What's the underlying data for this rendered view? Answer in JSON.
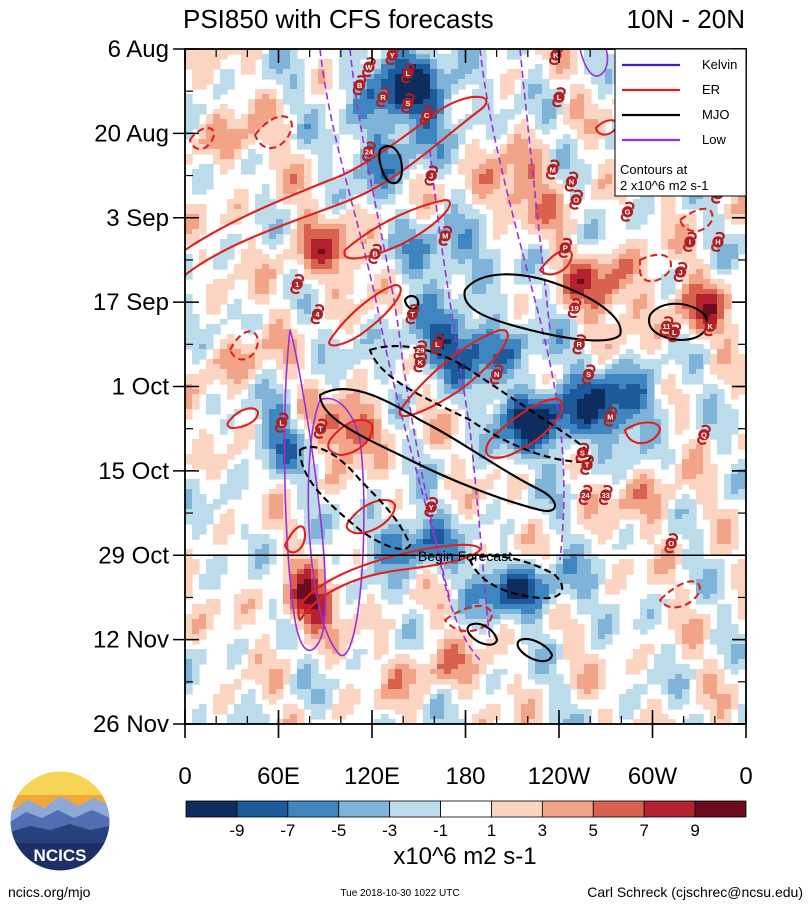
{
  "chart_data": {
    "type": "heatmap",
    "title": "PSI850 with CFS forecasts",
    "title_right": "10N - 20N",
    "xlabel": "",
    "ylabel": "",
    "x_tick_labels": [
      "0",
      "60E",
      "120E",
      "180",
      "120W",
      "60W",
      "0"
    ],
    "x_tick_values_deg_east": [
      0,
      60,
      120,
      180,
      240,
      300,
      360
    ],
    "xlim_deg_east": [
      0,
      360
    ],
    "y_tick_labels": [
      "6 Aug",
      "20 Aug",
      "3 Sep",
      "17 Sep",
      "1 Oct",
      "15 Oct",
      "29 Oct",
      "12 Nov",
      "26 Nov"
    ],
    "y_tick_dates": [
      "2018-08-06",
      "2018-08-20",
      "2018-09-03",
      "2018-09-17",
      "2018-10-01",
      "2018-10-15",
      "2018-10-29",
      "2018-11-12",
      "2018-11-26"
    ],
    "ylim_dates": [
      "2018-08-06",
      "2018-11-26"
    ],
    "y_direction": "time increases downward",
    "forecast_start": {
      "date": "2018-10-29",
      "label": "Begin Forecast"
    },
    "colorbar": {
      "units": "x10^6 m2 s-1",
      "bounds": [
        -11,
        -9,
        -7,
        -5,
        -3,
        -1,
        1,
        3,
        5,
        7,
        9,
        11
      ],
      "tick_labels": [
        "-9",
        "-7",
        "-5",
        "-3",
        "-1",
        "1",
        "3",
        "5",
        "7",
        "9"
      ],
      "colors": [
        "#0d2d5e",
        "#1c5a9c",
        "#3f86c0",
        "#7fb4d8",
        "#bcdcec",
        "#ffffff",
        "#fbd5c2",
        "#f2a488",
        "#d9624e",
        "#b3222e",
        "#6b0d1d"
      ]
    },
    "legend": {
      "placement": "top-right",
      "entries": [
        {
          "name": "Kelvin",
          "color": "#3a1fd0"
        },
        {
          "name": "ER",
          "color": "#e0201e"
        },
        {
          "name": "MJO",
          "color": "#000000"
        },
        {
          "name": "Low",
          "color": "#9b30d8"
        }
      ],
      "note_line1": "Contours at",
      "note_line2": "2 x10^6 m2 s-1"
    },
    "storm_markers": [
      {
        "label": "Y",
        "lon": 133,
        "date": "2018-08-07"
      },
      {
        "label": "K",
        "lon": 238,
        "date": "2018-08-07"
      },
      {
        "label": "W",
        "lon": 118,
        "date": "2018-08-09"
      },
      {
        "label": "L",
        "lon": 143,
        "date": "2018-08-10"
      },
      {
        "label": "B",
        "lon": 112,
        "date": "2018-08-12"
      },
      {
        "label": "R",
        "lon": 127,
        "date": "2018-08-14"
      },
      {
        "label": "S",
        "lon": 143,
        "date": "2018-08-15"
      },
      {
        "label": "L",
        "lon": 240,
        "date": "2018-08-14"
      },
      {
        "label": "C",
        "lon": 155,
        "date": "2018-08-17"
      },
      {
        "label": "24",
        "lon": 118,
        "date": "2018-08-23"
      },
      {
        "label": "J",
        "lon": 158,
        "date": "2018-08-27"
      },
      {
        "label": "M",
        "lon": 236,
        "date": "2018-08-26"
      },
      {
        "label": "N",
        "lon": 248,
        "date": "2018-08-28"
      },
      {
        "label": "O",
        "lon": 251,
        "date": "2018-08-31"
      },
      {
        "label": "G",
        "lon": 284,
        "date": "2018-09-02"
      },
      {
        "label": "E",
        "lon": 342,
        "date": "2018-08-30"
      },
      {
        "label": "M",
        "lon": 167,
        "date": "2018-09-06"
      },
      {
        "label": "B",
        "lon": 122,
        "date": "2018-09-09"
      },
      {
        "label": "P",
        "lon": 244,
        "date": "2018-09-08"
      },
      {
        "label": "I",
        "lon": 324,
        "date": "2018-09-07"
      },
      {
        "label": "H",
        "lon": 342,
        "date": "2018-09-07"
      },
      {
        "label": "J",
        "lon": 318,
        "date": "2018-09-12"
      },
      {
        "label": "1",
        "lon": 72,
        "date": "2018-09-14"
      },
      {
        "label": "4",
        "lon": 85,
        "date": "2018-09-19"
      },
      {
        "label": "T",
        "lon": 146,
        "date": "2018-09-19"
      },
      {
        "label": "19",
        "lon": 250,
        "date": "2018-09-18"
      },
      {
        "label": "11",
        "lon": 309,
        "date": "2018-09-21"
      },
      {
        "label": "L",
        "lon": 314,
        "date": "2018-09-22"
      },
      {
        "label": "K",
        "lon": 337,
        "date": "2018-09-21"
      },
      {
        "label": "L",
        "lon": 162,
        "date": "2018-09-24"
      },
      {
        "label": "29",
        "lon": 151,
        "date": "2018-09-25"
      },
      {
        "label": "K",
        "lon": 151,
        "date": "2018-09-27"
      },
      {
        "label": "R",
        "lon": 253,
        "date": "2018-09-24"
      },
      {
        "label": "N",
        "lon": 200,
        "date": "2018-09-29"
      },
      {
        "label": "S",
        "lon": 259,
        "date": "2018-09-29"
      },
      {
        "label": "M",
        "lon": 273,
        "date": "2018-10-06"
      },
      {
        "label": "L",
        "lon": 62,
        "date": "2018-10-07"
      },
      {
        "label": "T",
        "lon": 87,
        "date": "2018-10-08"
      },
      {
        "label": "Q",
        "lon": 333,
        "date": "2018-10-09"
      },
      {
        "label": "S",
        "lon": 255,
        "date": "2018-10-12"
      },
      {
        "label": "T",
        "lon": 258,
        "date": "2018-10-14"
      },
      {
        "label": "24",
        "lon": 257,
        "date": "2018-10-19"
      },
      {
        "label": "33",
        "lon": 270,
        "date": "2018-10-19"
      },
      {
        "label": "Y",
        "lon": 158,
        "date": "2018-10-21"
      },
      {
        "label": "O",
        "lon": 312,
        "date": "2018-10-27"
      }
    ]
  },
  "footer": {
    "logo_text": "NCICS",
    "site": "ncics.org/mjo",
    "timestamp": "Tue 2018-10-30 1022 UTC",
    "author": "Carl Schreck (cjschrec@ncsu.edu)"
  }
}
